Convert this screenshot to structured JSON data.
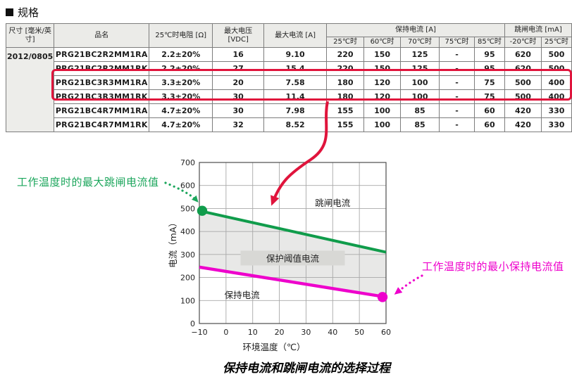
{
  "page": {
    "section_marker": "■",
    "section_title": "规格",
    "caption": "保持电流和跳闸电流的选择过程"
  },
  "table": {
    "headers": {
      "size": "尺寸 [毫米/英寸]",
      "name": "品名",
      "resistance": "25℃时电阻 [Ω]",
      "max_voltage": "最大电压 [VDC]",
      "max_current": "最大电流 [A]",
      "hold_group": "保持电流 [A]",
      "hold_subs": [
        "25℃时",
        "60℃时",
        "70℃时",
        "75℃时",
        "85℃时"
      ],
      "trip_group": "跳闸电流 [mA]",
      "trip_subs": [
        "-20℃时",
        "25℃时"
      ]
    },
    "size_value": "2012/0805",
    "rows": [
      {
        "name": "PRG21BC2R2MM1RA",
        "resistance": "2.2±20%",
        "voltage": "16",
        "current": "9.10",
        "hold": [
          "220",
          "150",
          "125",
          "-",
          "95"
        ],
        "trip": [
          "620",
          "500"
        ],
        "highlight": false
      },
      {
        "name": "PRG21BC2R2MM1RK",
        "resistance": "2.2±20%",
        "voltage": "27",
        "current": "15.4",
        "hold": [
          "220",
          "150",
          "125",
          "-",
          "95"
        ],
        "trip": [
          "620",
          "500"
        ],
        "highlight": false
      },
      {
        "name": "PRG21BC3R3MM1RA",
        "resistance": "3.3±20%",
        "voltage": "20",
        "current": "7.58",
        "hold": [
          "180",
          "120",
          "100",
          "-",
          "75"
        ],
        "trip": [
          "500",
          "400"
        ],
        "highlight": true
      },
      {
        "name": "PRG21BC3R3MM1RK",
        "resistance": "3.3±20%",
        "voltage": "30",
        "current": "11.4",
        "hold": [
          "180",
          "120",
          "100",
          "-",
          "75"
        ],
        "trip": [
          "500",
          "400"
        ],
        "highlight": true
      },
      {
        "name": "PRG21BC4R7MM1RA",
        "resistance": "4.7±20%",
        "voltage": "30",
        "current": "7.98",
        "hold": [
          "155",
          "100",
          "85",
          "-",
          "60"
        ],
        "trip": [
          "420",
          "330"
        ],
        "highlight": false
      },
      {
        "name": "PRG21BC4R7MM1RK",
        "resistance": "4.7±20%",
        "voltage": "32",
        "current": "8.52",
        "hold": [
          "155",
          "100",
          "85",
          "-",
          "60"
        ],
        "trip": [
          "420",
          "330"
        ],
        "highlight": false
      }
    ]
  },
  "annotations": {
    "left_green": "工作温度时的最大跳闸电流值",
    "right_magenta": "工作温度时的最小保持电流值"
  },
  "chart_data": {
    "type": "line",
    "title": "",
    "xlabel": "环境温度（℃）",
    "ylabel": "电流（mA）",
    "xlim": [
      -10,
      60
    ],
    "ylim": [
      0,
      700
    ],
    "xticks": [
      -10,
      0,
      10,
      20,
      30,
      40,
      50,
      60
    ],
    "yticks": [
      0,
      100,
      200,
      300,
      400,
      500,
      600,
      700
    ],
    "grid": true,
    "legend_position": "none",
    "series": [
      {
        "name": "跳闸电流",
        "color": "#109c4b",
        "x": [
          -10,
          60
        ],
        "values": [
          490,
          310
        ],
        "marker_at": "start"
      },
      {
        "name": "保持电流",
        "color": "#ee00cc",
        "x": [
          -10,
          60
        ],
        "values": [
          245,
          115
        ],
        "marker_at": "end"
      }
    ],
    "band_label": {
      "text": "保护阈值电流",
      "x": 25,
      "y": 283
    },
    "series_labels": [
      {
        "text": "跳闸电流",
        "x": 40,
        "y": 523
      },
      {
        "text": "保持电流",
        "x": 6,
        "y": 123
      }
    ]
  },
  "colors": {
    "highlight_red": "#e0143c",
    "callout_green": "#1ca65c",
    "callout_magenta": "#ee00cc",
    "band_fill": "rgba(125,125,122,0.18)",
    "band_label_fill": "#d8d8d5",
    "grid": "#a8a8a8",
    "plot_border": "#4d4d4d"
  }
}
